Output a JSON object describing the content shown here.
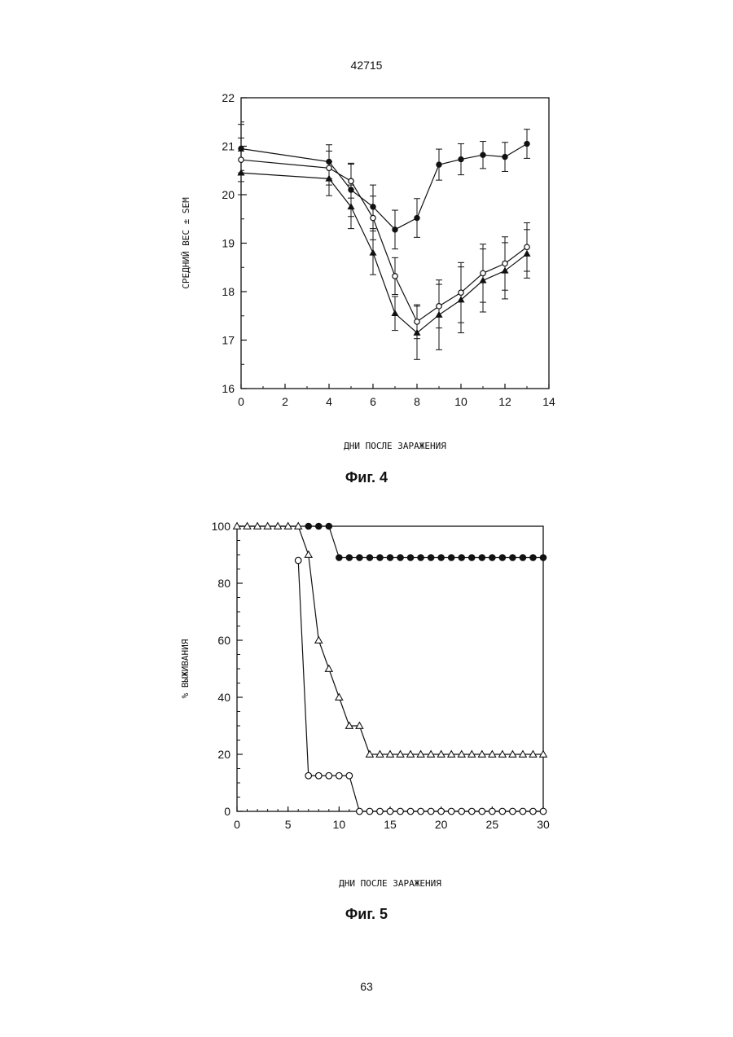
{
  "page": {
    "top_number": "42715",
    "bottom_number": "63"
  },
  "chart_data": [
    {
      "type": "line",
      "caption": "Фиг. 4",
      "xlabel": "ДНИ ПОСЛЕ ЗАРАЖЕНИЯ",
      "ylabel": "СРЕДНИЙ ВЕС ± SEM",
      "xlim": [
        0,
        14
      ],
      "ylim": [
        16,
        22
      ],
      "xticks": [
        0,
        2,
        4,
        6,
        8,
        10,
        12,
        14
      ],
      "yticks": [
        16,
        17,
        18,
        19,
        20,
        21,
        22
      ],
      "grid": false,
      "series": [
        {
          "marker": "filled-circle",
          "x": [
            0,
            4,
            5,
            6,
            7,
            8,
            9,
            10,
            11,
            12,
            13
          ],
          "y": [
            20.95,
            20.68,
            20.1,
            19.75,
            19.28,
            19.52,
            20.62,
            20.73,
            20.82,
            20.78,
            21.05
          ],
          "err": [
            0.5,
            0.35,
            0.55,
            0.45,
            0.4,
            0.4,
            0.32,
            0.32,
            0.28,
            0.3,
            0.3
          ]
        },
        {
          "marker": "open-circle",
          "x": [
            0,
            4,
            5,
            6,
            7,
            8,
            9,
            10,
            11,
            12,
            13
          ],
          "y": [
            20.72,
            20.55,
            20.28,
            19.52,
            18.32,
            17.38,
            17.7,
            17.98,
            18.38,
            18.58,
            18.92
          ],
          "err": [
            0.45,
            0.35,
            0.35,
            0.45,
            0.38,
            0.35,
            0.45,
            0.62,
            0.6,
            0.55,
            0.5
          ]
        },
        {
          "marker": "filled-triangle",
          "x": [
            0,
            4,
            5,
            6,
            7,
            8,
            9,
            10,
            11,
            12,
            13
          ],
          "y": [
            20.45,
            20.33,
            19.75,
            18.8,
            17.55,
            17.15,
            17.52,
            17.83,
            18.23,
            18.43,
            18.78
          ],
          "err": [
            0.45,
            0.35,
            0.45,
            0.45,
            0.35,
            0.55,
            0.72,
            0.68,
            0.65,
            0.58,
            0.5
          ]
        }
      ]
    },
    {
      "type": "line",
      "caption": "Фиг. 5",
      "xlabel": "ДНИ ПОСЛЕ ЗАРАЖЕНИЯ",
      "ylabel": "% ВЫЖИВАНИЯ",
      "xlim": [
        0,
        30
      ],
      "ylim": [
        0,
        100
      ],
      "xticks": [
        0,
        5,
        10,
        15,
        20,
        25,
        30
      ],
      "yticks": [
        0,
        20,
        40,
        60,
        80,
        100
      ],
      "grid": false,
      "series": [
        {
          "marker": "filled-circle",
          "x": [
            7,
            8,
            9,
            10,
            11,
            12,
            13,
            14,
            15,
            16,
            17,
            18,
            19,
            20,
            21,
            22,
            23,
            24,
            25,
            26,
            27,
            28,
            29,
            30
          ],
          "y": [
            100,
            100,
            100,
            89,
            89,
            89,
            89,
            89,
            89,
            89,
            89,
            89,
            89,
            89,
            89,
            89,
            89,
            89,
            89,
            89,
            89,
            89,
            89,
            89
          ]
        },
        {
          "marker": "open-triangle",
          "x": [
            0,
            1,
            2,
            3,
            4,
            5,
            6,
            7,
            8,
            9,
            10,
            11,
            12,
            13,
            14,
            15,
            16,
            17,
            18,
            19,
            20,
            21,
            22,
            23,
            24,
            25,
            26,
            27,
            28,
            29,
            30
          ],
          "y": [
            100,
            100,
            100,
            100,
            100,
            100,
            100,
            90,
            60,
            50,
            40,
            30,
            30,
            20,
            20,
            20,
            20,
            20,
            20,
            20,
            20,
            20,
            20,
            20,
            20,
            20,
            20,
            20,
            20,
            20,
            20
          ]
        },
        {
          "marker": "open-circle",
          "x": [
            6,
            7,
            8,
            9,
            10,
            11,
            12,
            13,
            14,
            15,
            16,
            17,
            18,
            19,
            20,
            21,
            22,
            23,
            24,
            25,
            26,
            27,
            28,
            29,
            30
          ],
          "y": [
            88,
            12.5,
            12.5,
            12.5,
            12.5,
            12.5,
            0,
            0,
            0,
            0,
            0,
            0,
            0,
            0,
            0,
            0,
            0,
            0,
            0,
            0,
            0,
            0,
            0,
            0,
            0
          ]
        }
      ]
    }
  ]
}
